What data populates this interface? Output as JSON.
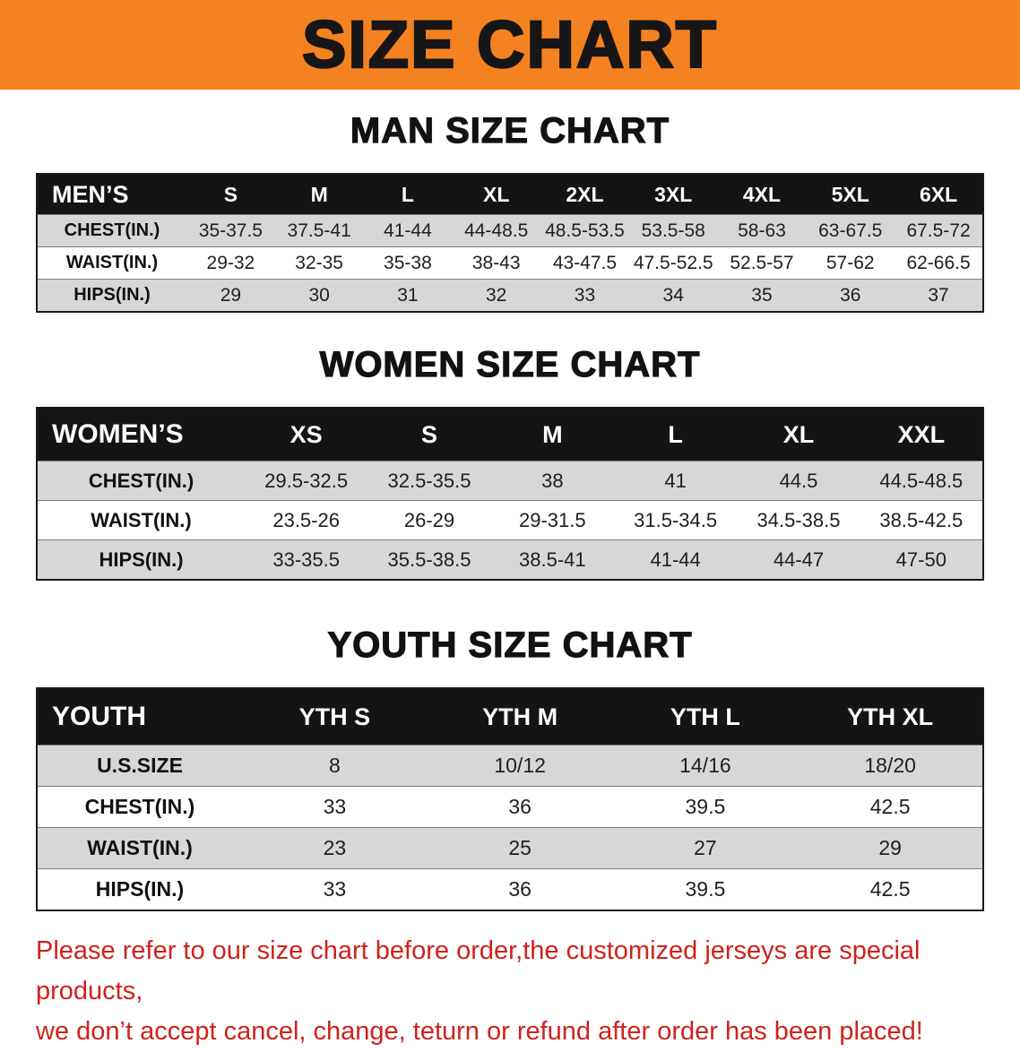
{
  "banner": {
    "title": "SIZE CHART"
  },
  "men": {
    "heading": "MAN SIZE CHART",
    "corner": "MEN’S",
    "sizes": [
      "S",
      "M",
      "L",
      "XL",
      "2XL",
      "3XL",
      "4XL",
      "5XL",
      "6XL"
    ],
    "rows": [
      {
        "label": "CHEST(IN.)",
        "values": [
          "35-37.5",
          "37.5-41",
          "41-44",
          "44-48.5",
          "48.5-53.5",
          "53.5-58",
          "58-63",
          "63-67.5",
          "67.5-72"
        ]
      },
      {
        "label": "WAIST(IN.)",
        "values": [
          "29-32",
          "32-35",
          "35-38",
          "38-43",
          "43-47.5",
          "47.5-52.5",
          "52.5-57",
          "57-62",
          "62-66.5"
        ]
      },
      {
        "label": "HIPS(IN.)",
        "values": [
          "29",
          "30",
          "31",
          "32",
          "33",
          "34",
          "35",
          "36",
          "37"
        ]
      }
    ]
  },
  "women": {
    "heading": "WOMEN SIZE CHART",
    "corner": "WOMEN’S",
    "sizes": [
      "XS",
      "S",
      "M",
      "L",
      "XL",
      "XXL"
    ],
    "rows": [
      {
        "label": "CHEST(IN.)",
        "values": [
          "29.5-32.5",
          "32.5-35.5",
          "38",
          "41",
          "44.5",
          "44.5-48.5"
        ]
      },
      {
        "label": "WAIST(IN.)",
        "values": [
          "23.5-26",
          "26-29",
          "29-31.5",
          "31.5-34.5",
          "34.5-38.5",
          "38.5-42.5"
        ]
      },
      {
        "label": "HIPS(IN.)",
        "values": [
          "33-35.5",
          "35.5-38.5",
          "38.5-41",
          "41-44",
          "44-47",
          "47-50"
        ]
      }
    ]
  },
  "youth": {
    "heading": "YOUTH SIZE CHART",
    "corner": "YOUTH",
    "sizes": [
      "YTH S",
      "YTH M",
      "YTH L",
      "YTH XL"
    ],
    "rows": [
      {
        "label": "U.S.SIZE",
        "values": [
          "8",
          "10/12",
          "14/16",
          "18/20"
        ]
      },
      {
        "label": "CHEST(IN.)",
        "values": [
          "33",
          "36",
          "39.5",
          "42.5"
        ]
      },
      {
        "label": "WAIST(IN.)",
        "values": [
          "23",
          "25",
          "27",
          "29"
        ]
      },
      {
        "label": "HIPS(IN.)",
        "values": [
          "33",
          "36",
          "39.5",
          "42.5"
        ]
      }
    ]
  },
  "disclaimer": {
    "line1": "Please refer to our size chart before order,the customized jerseys are special products,",
    "line2": "we don’t accept cancel, change, teturn or refund after order has been placed!"
  },
  "colors": {
    "banner_bg": "#f58220",
    "table_header_bg": "#141414",
    "row_alt_bg": "#d7d7d7",
    "disclaimer_text": "#cf221c"
  }
}
